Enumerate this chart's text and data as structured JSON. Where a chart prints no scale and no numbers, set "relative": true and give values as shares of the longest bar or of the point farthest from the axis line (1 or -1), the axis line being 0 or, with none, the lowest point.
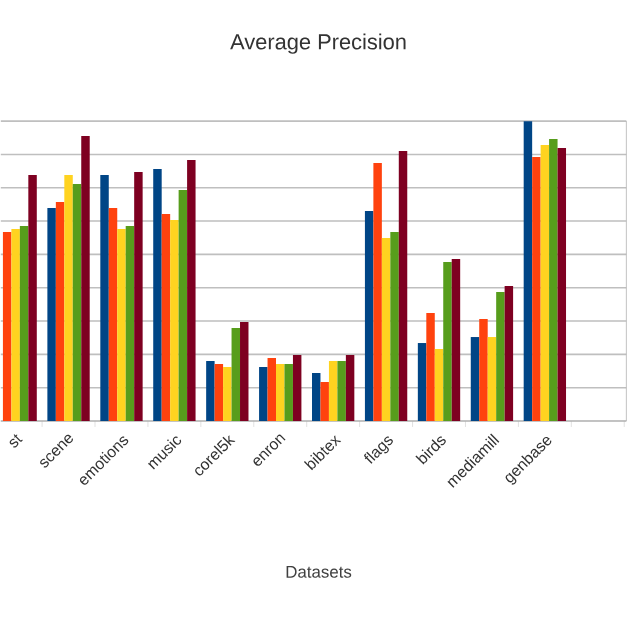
{
  "chart_data": {
    "type": "bar",
    "title": "Average Precision",
    "xlabel": "Datasets",
    "categories": [
      "st",
      "scene",
      "emotions",
      "music",
      "corel5k",
      "enron",
      "bibtex",
      "flags",
      "birds",
      "mediamill",
      "genbase"
    ],
    "relative": true,
    "grid": "y",
    "series": [
      {
        "color": "#004586",
        "values": [
          null,
          0.71,
          0.82,
          0.84,
          0.2,
          0.18,
          0.16,
          0.7,
          0.26,
          0.28,
          1.0
        ]
      },
      {
        "color": "#ff420e",
        "values": [
          0.63,
          0.73,
          0.71,
          0.69,
          0.19,
          0.21,
          0.13,
          0.86,
          0.36,
          0.34,
          0.88
        ]
      },
      {
        "color": "#ffd320",
        "values": [
          0.64,
          0.82,
          0.64,
          0.67,
          0.18,
          0.19,
          0.2,
          0.61,
          0.24,
          0.28,
          0.92
        ]
      },
      {
        "color": "#579d1c",
        "values": [
          0.65,
          0.79,
          0.65,
          0.77,
          0.31,
          0.19,
          0.2,
          0.63,
          0.53,
          0.43,
          0.94
        ]
      },
      {
        "color": "#7e0021",
        "values": [
          0.82,
          0.95,
          0.83,
          0.87,
          0.33,
          0.22,
          0.22,
          0.9,
          0.54,
          0.45,
          0.91
        ]
      }
    ]
  }
}
